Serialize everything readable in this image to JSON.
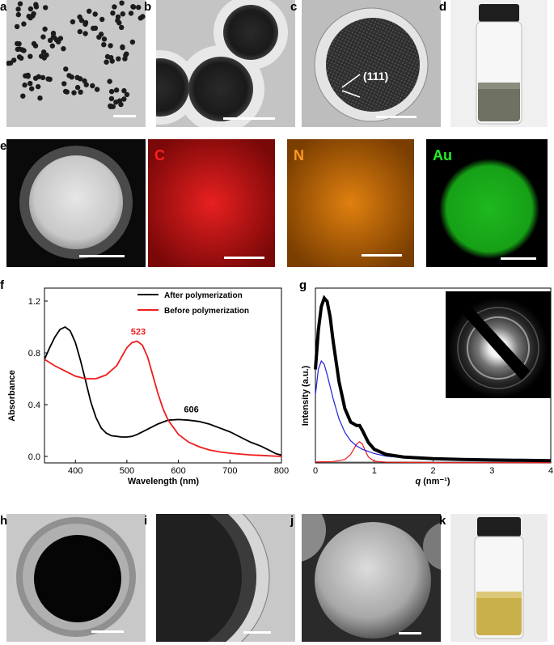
{
  "panel_labels": {
    "a": "a",
    "b": "b",
    "c": "c",
    "d": "d",
    "e": "e",
    "f": "f",
    "g": "g",
    "h": "h",
    "i": "i",
    "j": "j",
    "k": "k"
  },
  "panel_c_annotation": "(111)",
  "eds_labels": {
    "c": "C",
    "n": "N",
    "au": "Au"
  },
  "eds_colors": {
    "c": "#ff2020",
    "n": "#ff9a20",
    "au": "#22ee22"
  },
  "chart_data": [
    {
      "type": "line",
      "panel": "f",
      "xlabel": "Wavelength (nm)",
      "ylabel": "Absorbance",
      "xlim": [
        340,
        800
      ],
      "ylim": [
        -0.05,
        1.3
      ],
      "xticks": [
        400,
        500,
        600,
        700,
        800
      ],
      "yticks": [
        0.0,
        0.4,
        0.8,
        1.2
      ],
      "series": [
        {
          "name": "After polymerization",
          "color": "#000000",
          "x": [
            340,
            350,
            360,
            370,
            380,
            390,
            400,
            410,
            420,
            430,
            440,
            450,
            460,
            470,
            480,
            490,
            500,
            510,
            520,
            540,
            560,
            580,
            600,
            620,
            640,
            660,
            680,
            700,
            720,
            740,
            760,
            780,
            790,
            800
          ],
          "y": [
            0.75,
            0.84,
            0.92,
            0.98,
            1.0,
            0.97,
            0.88,
            0.74,
            0.58,
            0.42,
            0.3,
            0.22,
            0.18,
            0.16,
            0.155,
            0.15,
            0.15,
            0.155,
            0.17,
            0.21,
            0.25,
            0.28,
            0.285,
            0.28,
            0.27,
            0.25,
            0.22,
            0.19,
            0.15,
            0.11,
            0.08,
            0.04,
            0.02,
            0.01
          ]
        },
        {
          "name": "Before polymerization",
          "color": "#ee1c1c",
          "x": [
            340,
            360,
            380,
            400,
            420,
            440,
            460,
            480,
            490,
            500,
            510,
            520,
            530,
            540,
            550,
            560,
            570,
            580,
            600,
            620,
            640,
            660,
            680,
            700,
            720,
            740,
            760,
            780,
            800
          ],
          "y": [
            0.75,
            0.7,
            0.66,
            0.62,
            0.6,
            0.6,
            0.63,
            0.7,
            0.77,
            0.84,
            0.88,
            0.89,
            0.86,
            0.77,
            0.63,
            0.49,
            0.37,
            0.28,
            0.17,
            0.11,
            0.075,
            0.05,
            0.035,
            0.025,
            0.018,
            0.012,
            0.008,
            0.004,
            0.0
          ]
        }
      ],
      "annotations": [
        {
          "text": "523",
          "x": 522,
          "y": 0.94,
          "color": "#ee1c1c"
        },
        {
          "text": "606",
          "x": 625,
          "y": 0.34,
          "color": "#000000"
        }
      ],
      "legend": "top-right"
    },
    {
      "type": "line",
      "panel": "g",
      "xlabel": "q (nm⁻¹)",
      "xlabel_q": "q",
      "xlabel_unit": " (nm⁻¹)",
      "ylabel": "Intensity (a.u.)",
      "xlim": [
        0,
        4
      ],
      "ylim": [
        0,
        1
      ],
      "xticks": [
        0,
        1,
        2,
        3,
        4
      ],
      "series": [
        {
          "color": "#000000",
          "x": [
            0,
            0.05,
            0.1,
            0.15,
            0.2,
            0.25,
            0.3,
            0.4,
            0.5,
            0.6,
            0.7,
            0.75,
            0.8,
            0.9,
            1.0,
            1.2,
            1.5,
            2.0,
            2.5,
            3.0,
            3.5,
            4.0
          ],
          "y": [
            0.55,
            0.78,
            0.92,
            0.97,
            0.95,
            0.86,
            0.72,
            0.48,
            0.32,
            0.24,
            0.22,
            0.22,
            0.19,
            0.12,
            0.08,
            0.05,
            0.035,
            0.025,
            0.02,
            0.017,
            0.015,
            0.013
          ]
        },
        {
          "color": "#2020dd",
          "x": [
            0,
            0.05,
            0.1,
            0.15,
            0.2,
            0.3,
            0.4,
            0.5,
            0.6,
            0.7,
            0.8,
            1.0,
            1.2,
            1.5,
            2.0,
            2.5,
            3.0,
            3.5,
            4.0
          ],
          "y": [
            0.4,
            0.55,
            0.6,
            0.58,
            0.52,
            0.38,
            0.26,
            0.18,
            0.13,
            0.1,
            0.08,
            0.055,
            0.04,
            0.03,
            0.022,
            0.018,
            0.015,
            0.013,
            0.012
          ]
        },
        {
          "color": "#ee1c1c",
          "x": [
            0,
            0.3,
            0.5,
            0.6,
            0.65,
            0.7,
            0.75,
            0.8,
            0.85,
            0.9,
            1.0,
            1.2,
            2.0,
            4.0
          ],
          "y": [
            0.005,
            0.008,
            0.02,
            0.05,
            0.08,
            0.11,
            0.125,
            0.11,
            0.07,
            0.035,
            0.01,
            0.004,
            0.002,
            0.002
          ]
        },
        {
          "color": "#999999",
          "x": [
            0,
            4.0
          ],
          "y": [
            0.005,
            0.005
          ]
        }
      ]
    }
  ]
}
